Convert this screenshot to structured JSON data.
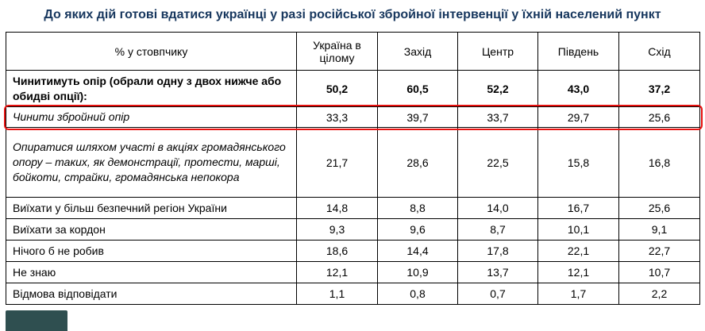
{
  "title": "До яких дій готові вдатися українці у разі російської збройної інтервенції у їхній населений пункт",
  "colors": {
    "title": "#17375e",
    "highlight": "#e8110f",
    "logo_bg": "#2f4f50",
    "border": "#000000"
  },
  "logo": {
    "name": "site-logo-partial"
  },
  "chart_data": {
    "type": "table",
    "title": "До яких дій готові вдатися українці у разі російської збройної інтервенції у їхній населений пункт",
    "columns": [
      "% у стовпчику",
      "Україна в цілому",
      "Захід",
      "Центр",
      "Південь",
      "Схід"
    ],
    "rows": [
      {
        "label": "Чинитимуть опір (обрали одну з двох нижче або обидві опції):",
        "values": [
          "50,2",
          "60,5",
          "52,2",
          "43,0",
          "37,2"
        ],
        "style": "bold",
        "highlighted": false
      },
      {
        "label": "Чинити збройний опір",
        "values": [
          "33,3",
          "39,7",
          "33,7",
          "29,7",
          "25,6"
        ],
        "style": "italic",
        "highlighted": true
      },
      {
        "label": "Опиратися шляхом участі в акціях громадянського опору – таких, як демонстрації, протести, марші, бойкоти, страйки, громадянська непокора",
        "values": [
          "21,7",
          "28,6",
          "22,5",
          "15,8",
          "16,8"
        ],
        "style": "italic",
        "highlighted": false
      },
      {
        "label": "Виїхати у більш безпечний регіон України",
        "values": [
          "14,8",
          "8,8",
          "14,0",
          "16,7",
          "25,6"
        ],
        "style": "normal",
        "highlighted": false
      },
      {
        "label": "Виїхати за кордон",
        "values": [
          "9,3",
          "9,6",
          "8,7",
          "10,1",
          "9,1"
        ],
        "style": "normal",
        "highlighted": false
      },
      {
        "label": "Нічого б не робив",
        "values": [
          "18,6",
          "14,4",
          "17,8",
          "22,1",
          "22,7"
        ],
        "style": "normal",
        "highlighted": false
      },
      {
        "label": "Не знаю",
        "values": [
          "12,1",
          "10,9",
          "13,7",
          "12,1",
          "10,7"
        ],
        "style": "normal",
        "highlighted": false
      },
      {
        "label": "Відмова відповідати",
        "values": [
          "1,1",
          "0,8",
          "0,7",
          "1,7",
          "2,2"
        ],
        "style": "normal",
        "highlighted": false
      }
    ]
  }
}
